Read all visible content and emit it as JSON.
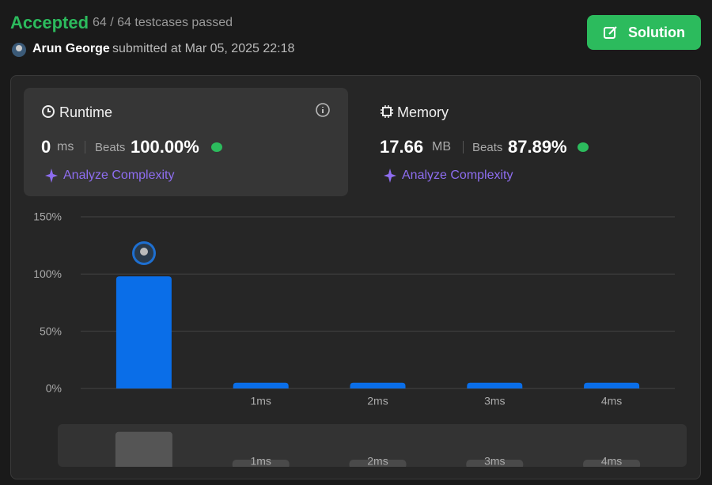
{
  "header": {
    "status": "Accepted",
    "testcases": "64 / 64 testcases passed",
    "user": "Arun George",
    "submitted": "submitted at Mar 05, 2025 22:18",
    "button": "Solution"
  },
  "runtime": {
    "title": "Runtime",
    "value": 0,
    "unit": "ms",
    "beats_label": "Beats",
    "beats": "100.00%",
    "analyze": "Analyze Complexity"
  },
  "memory": {
    "title": "Memory",
    "value": 17.66,
    "unit": "MB",
    "beats_label": "Beats",
    "beats": "87.89%",
    "analyze": "Analyze Complexity"
  },
  "chart_data": {
    "type": "bar",
    "categories": [
      null,
      "1ms",
      "2ms",
      "3ms",
      "4ms"
    ],
    "values": [
      98,
      5,
      5,
      5,
      5
    ],
    "color": "#0a6ee8",
    "ylim": [
      0,
      150
    ],
    "yticks": [
      {
        "value": 0,
        "label": "0%"
      },
      {
        "value": 50,
        "label": "50%"
      },
      {
        "value": 100,
        "label": "100%"
      },
      {
        "value": 150,
        "label": "150%"
      }
    ],
    "grid": true
  }
}
